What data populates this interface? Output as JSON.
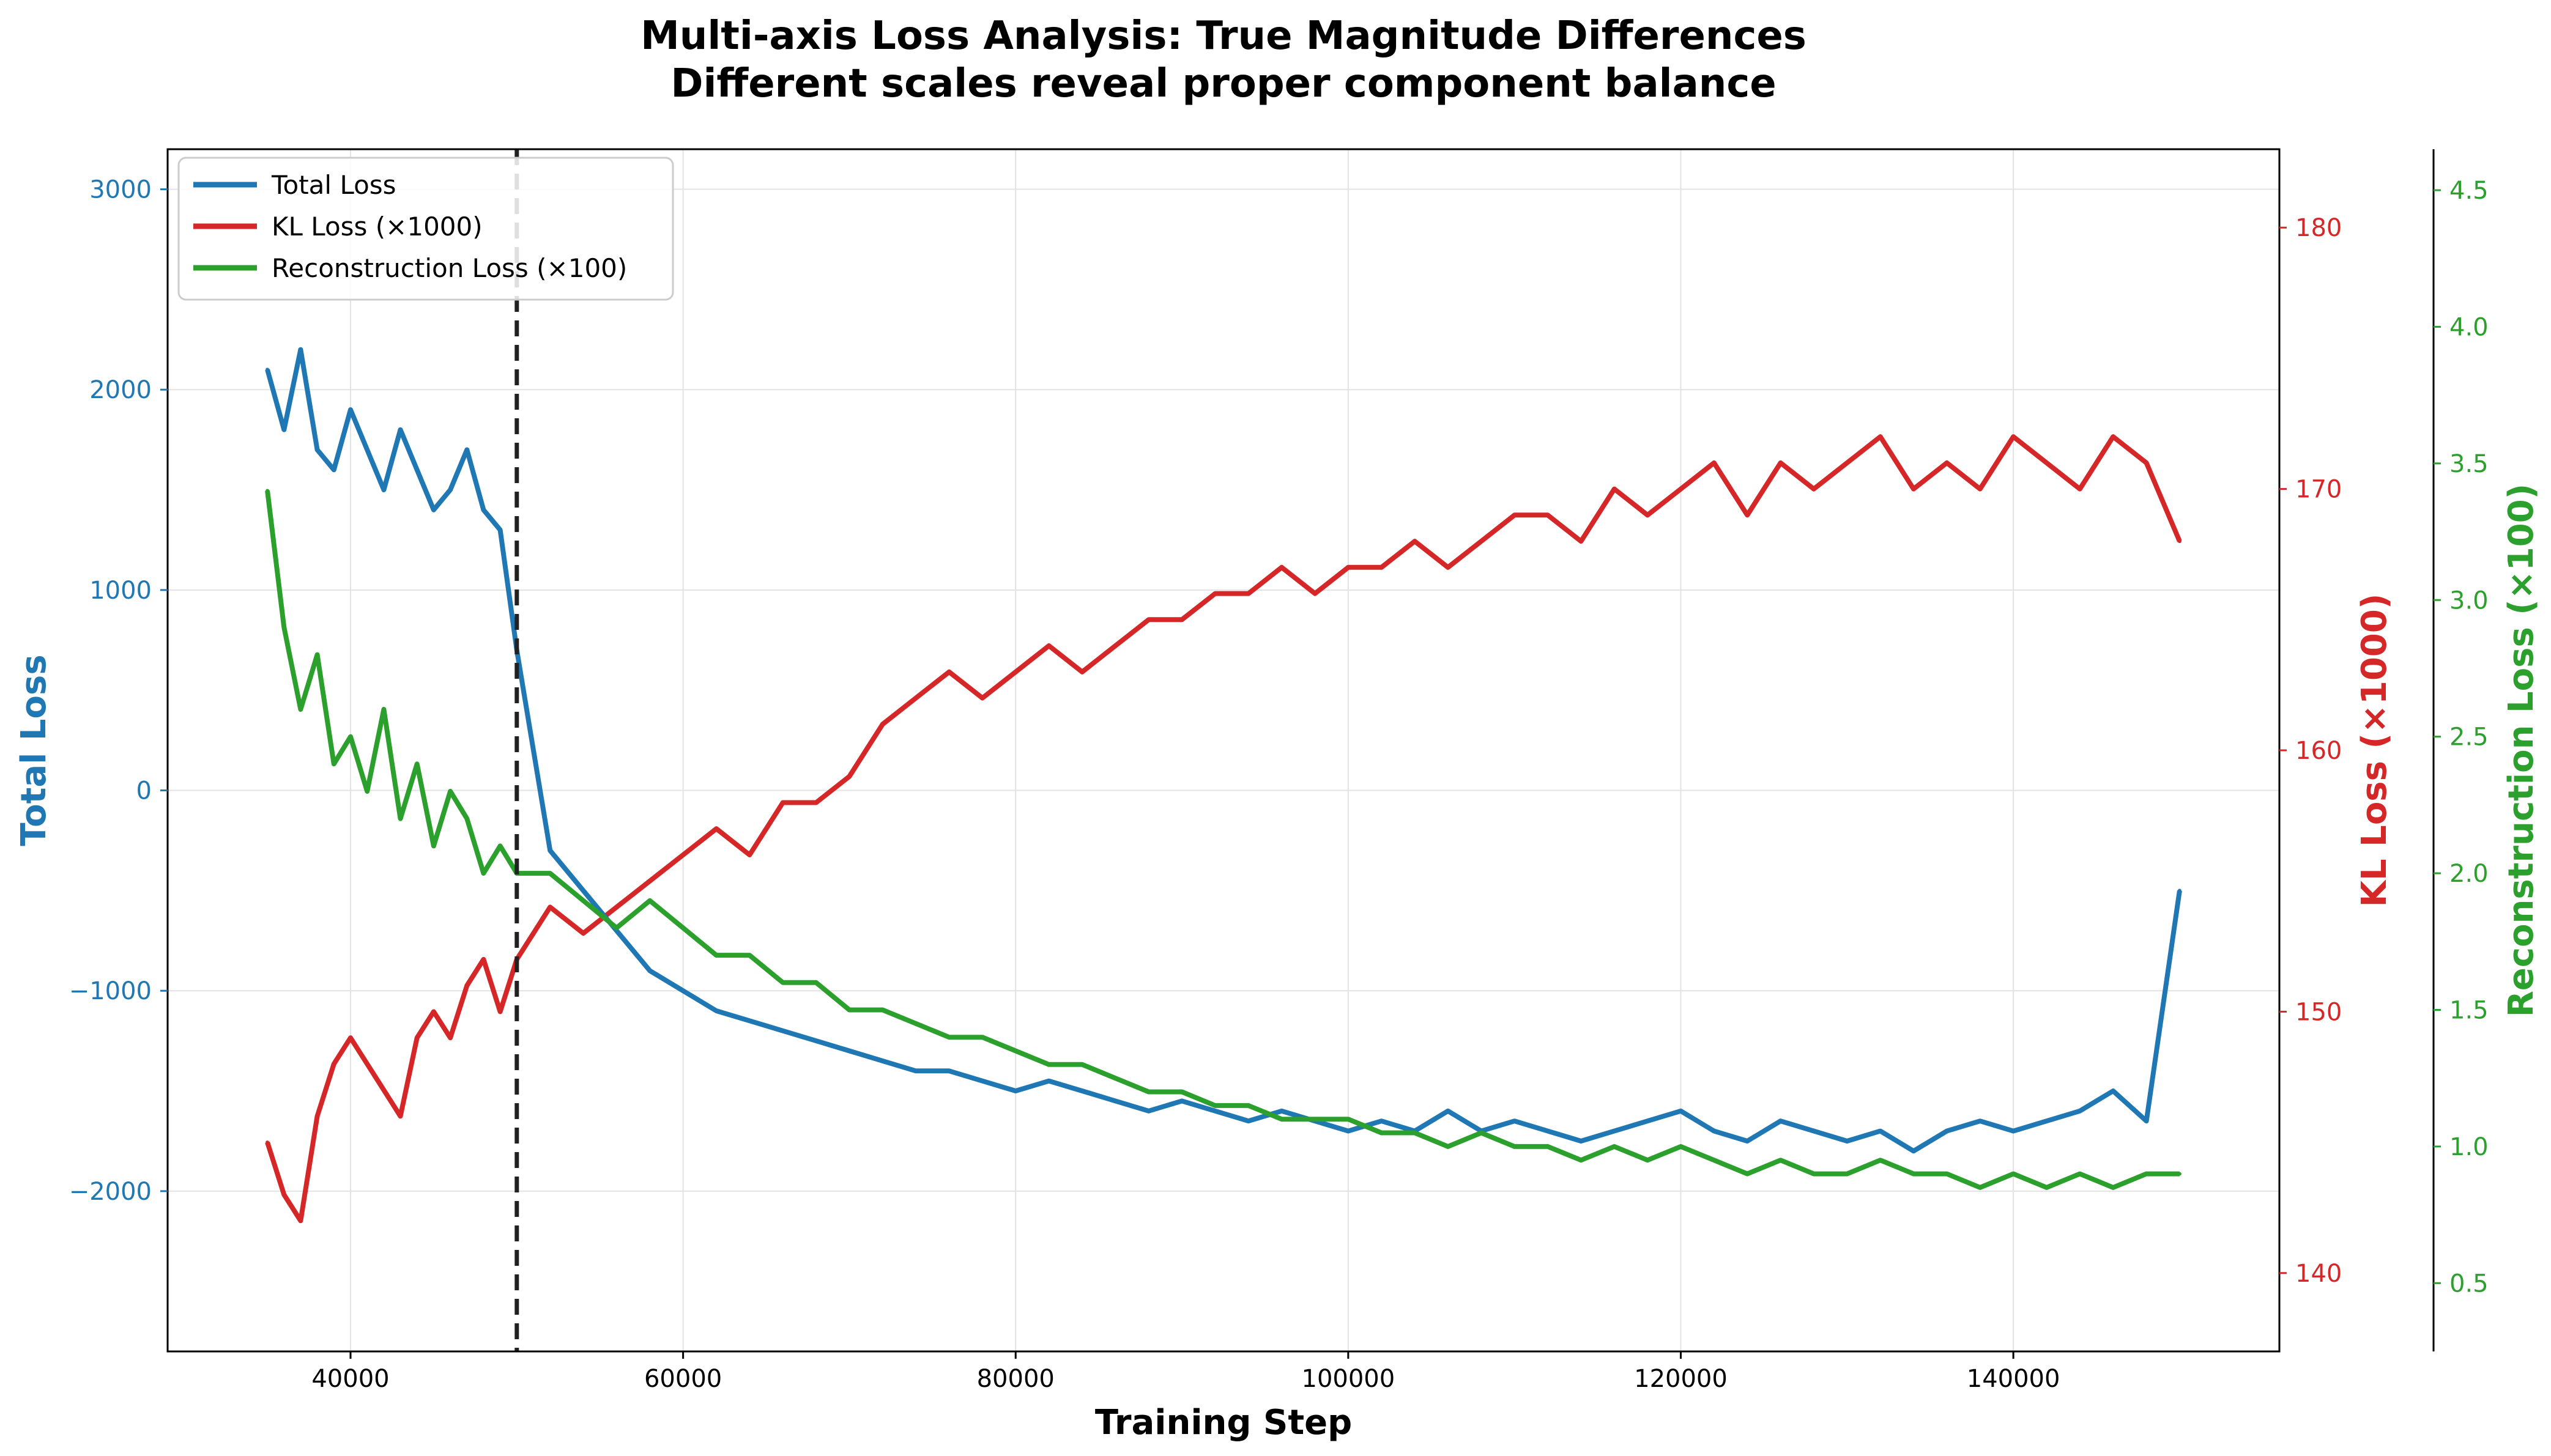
{
  "chart_data": {
    "type": "line",
    "title": "Multi-axis Loss Analysis: True Magnitude Differences",
    "subtitle": "Different scales reveal proper component balance",
    "xlabel": "Training Step",
    "ylabel_left": "Total Loss",
    "ylabel_right": "KL Loss (×1000)",
    "ylabel_right_outer": "Reconstruction Loss (×100)",
    "xlim": [
      29000,
      156000
    ],
    "ylim_left": [
      -2800,
      3200
    ],
    "ylim_right": [
      137,
      183
    ],
    "ylim_right_outer": [
      0.25,
      4.65
    ],
    "x_ticks": [
      40000,
      60000,
      80000,
      100000,
      120000,
      140000
    ],
    "x_tick_labels": [
      "40000",
      "60000",
      "80000",
      "100000",
      "120000",
      "140000"
    ],
    "y_left_ticks": [
      3000,
      2000,
      1000,
      0,
      -1000,
      -2000
    ],
    "y_left_tick_labels": [
      "3000",
      "2000",
      "1000",
      "0",
      "−1000",
      "−2000"
    ],
    "y_right_ticks": [
      180,
      170,
      160,
      150,
      140
    ],
    "y_right_tick_labels": [
      "180",
      "170",
      "160",
      "150",
      "140"
    ],
    "y_right_outer_ticks": [
      4.5,
      4.0,
      3.5,
      3.0,
      2.5,
      2.0,
      1.5,
      1.0,
      0.5
    ],
    "y_right_outer_tick_labels": [
      "4.5",
      "4.0",
      "3.5",
      "3.0",
      "2.5",
      "2.0",
      "1.5",
      "1.0",
      "0.5"
    ],
    "vline": {
      "x": 50000,
      "color": "#222222",
      "style": "dashed"
    },
    "grid": true,
    "legend_position": "top-left",
    "series": [
      {
        "name": "Total Loss",
        "axis": "left",
        "color": "#1f77b4",
        "x": [
          35000,
          36000,
          37000,
          38000,
          39000,
          40000,
          41000,
          42000,
          43000,
          44000,
          45000,
          46000,
          47000,
          48000,
          49000,
          50000,
          52000,
          54000,
          56000,
          58000,
          60000,
          62000,
          64000,
          66000,
          68000,
          70000,
          72000,
          74000,
          76000,
          78000,
          80000,
          82000,
          84000,
          86000,
          88000,
          90000,
          92000,
          94000,
          96000,
          98000,
          100000,
          102000,
          104000,
          106000,
          108000,
          110000,
          112000,
          114000,
          116000,
          118000,
          120000,
          122000,
          124000,
          126000,
          128000,
          130000,
          132000,
          134000,
          136000,
          138000,
          140000,
          142000,
          144000,
          146000,
          148000,
          150000
        ],
        "values": [
          2100,
          1800,
          2200,
          1700,
          1600,
          1900,
          1700,
          1500,
          1800,
          1600,
          1400,
          1500,
          1700,
          1400,
          1300,
          700,
          -300,
          -500,
          -700,
          -900,
          -1000,
          -1100,
          -1150,
          -1200,
          -1250,
          -1300,
          -1350,
          -1400,
          -1400,
          -1450,
          -1500,
          -1450,
          -1500,
          -1550,
          -1600,
          -1550,
          -1600,
          -1650,
          -1600,
          -1650,
          -1700,
          -1650,
          -1700,
          -1600,
          -1700,
          -1650,
          -1700,
          -1750,
          -1700,
          -1650,
          -1600,
          -1700,
          -1750,
          -1650,
          -1700,
          -1750,
          -1700,
          -1800,
          -1700,
          -1650,
          -1700,
          -1650,
          -1600,
          -1500,
          -1650,
          -500
        ]
      },
      {
        "name": "KL Loss (×1000)",
        "axis": "right",
        "color": "#d62728",
        "x": [
          35000,
          36000,
          37000,
          38000,
          39000,
          40000,
          41000,
          42000,
          43000,
          44000,
          45000,
          46000,
          47000,
          48000,
          49000,
          50000,
          52000,
          54000,
          56000,
          58000,
          60000,
          62000,
          64000,
          66000,
          68000,
          70000,
          72000,
          74000,
          76000,
          78000,
          80000,
          82000,
          84000,
          86000,
          88000,
          90000,
          92000,
          94000,
          96000,
          98000,
          100000,
          102000,
          104000,
          106000,
          108000,
          110000,
          112000,
          114000,
          116000,
          118000,
          120000,
          122000,
          124000,
          126000,
          128000,
          130000,
          132000,
          134000,
          136000,
          138000,
          140000,
          142000,
          144000,
          146000,
          148000,
          150000
        ],
        "values": [
          145,
          143,
          142,
          146,
          148,
          149,
          148,
          147,
          146,
          149,
          150,
          149,
          151,
          152,
          150,
          152,
          154,
          153,
          154,
          155,
          156,
          157,
          156,
          158,
          158,
          159,
          161,
          162,
          163,
          162,
          163,
          164,
          163,
          164,
          165,
          165,
          166,
          166,
          167,
          166,
          167,
          167,
          168,
          167,
          168,
          169,
          169,
          168,
          170,
          169,
          170,
          171,
          169,
          171,
          170,
          171,
          172,
          170,
          171,
          170,
          172,
          171,
          170,
          172,
          171,
          168
        ]
      },
      {
        "name": "Reconstruction Loss (×100)",
        "axis": "right_outer",
        "color": "#2ca02c",
        "x": [
          35000,
          36000,
          37000,
          38000,
          39000,
          40000,
          41000,
          42000,
          43000,
          44000,
          45000,
          46000,
          47000,
          48000,
          49000,
          50000,
          52000,
          54000,
          56000,
          58000,
          60000,
          62000,
          64000,
          66000,
          68000,
          70000,
          72000,
          74000,
          76000,
          78000,
          80000,
          82000,
          84000,
          86000,
          88000,
          90000,
          92000,
          94000,
          96000,
          98000,
          100000,
          102000,
          104000,
          106000,
          108000,
          110000,
          112000,
          114000,
          116000,
          118000,
          120000,
          122000,
          124000,
          126000,
          128000,
          130000,
          132000,
          134000,
          136000,
          138000,
          140000,
          142000,
          144000,
          146000,
          148000,
          150000
        ],
        "values": [
          3.4,
          2.9,
          2.6,
          2.8,
          2.4,
          2.5,
          2.3,
          2.6,
          2.2,
          2.4,
          2.1,
          2.3,
          2.2,
          2.0,
          2.1,
          2.0,
          2.0,
          1.9,
          1.8,
          1.9,
          1.8,
          1.7,
          1.7,
          1.6,
          1.6,
          1.5,
          1.5,
          1.45,
          1.4,
          1.4,
          1.35,
          1.3,
          1.3,
          1.25,
          1.2,
          1.2,
          1.15,
          1.15,
          1.1,
          1.1,
          1.1,
          1.05,
          1.05,
          1.0,
          1.05,
          1.0,
          1.0,
          0.95,
          1.0,
          0.95,
          1.0,
          0.95,
          0.9,
          0.95,
          0.9,
          0.9,
          0.95,
          0.9,
          0.9,
          0.85,
          0.9,
          0.85,
          0.9,
          0.85,
          0.9,
          0.9
        ]
      }
    ]
  }
}
